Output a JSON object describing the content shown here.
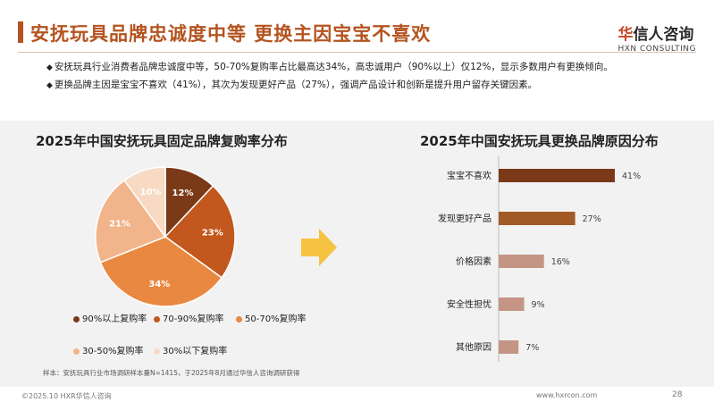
{
  "header": {
    "title": "安抚玩具品牌忠诚度中等 更换主因宝宝不喜欢",
    "logo_cn_prefix": "华",
    "logo_cn_rest": "信人咨询",
    "logo_en": "HXN CONSULTING"
  },
  "bullets": [
    "安抚玩具行业消费者品牌忠诚度中等，50-70%复购率占比最高达34%，高忠诚用户（90%以上）仅12%，显示多数用户有更换倾向。",
    "更换品牌主因是宝宝不喜欢（41%），其次为发现更好产品（27%），强调产品设计和创新是提升用户留存关键因素。"
  ],
  "colors": {
    "accent": "#b4531f",
    "pie": [
      "#7a3a17",
      "#c2581d",
      "#e98840",
      "#f2b48a",
      "#f8d9c3"
    ],
    "bar": [
      "#7a3a17",
      "#a25a26",
      "#c49585",
      "#c49585",
      "#c49585"
    ]
  },
  "chart_data": [
    {
      "type": "pie",
      "title": "2025年中国安抚玩具固定品牌复购率分布",
      "series": [
        {
          "name": "90%以上复购率",
          "value": 12,
          "label": "12%"
        },
        {
          "name": "70-90%复购率",
          "value": 23,
          "label": "23%"
        },
        {
          "name": "50-70%复购率",
          "value": 34,
          "label": "34%"
        },
        {
          "name": "30-50%复购率",
          "value": 21,
          "label": "21%"
        },
        {
          "name": "30%以下复购率",
          "value": 10,
          "label": "10%"
        }
      ],
      "legend": "bottom"
    },
    {
      "type": "bar",
      "orientation": "horizontal",
      "title": "2025年中国安抚玩具更换品牌原因分布",
      "categories": [
        "宝宝不喜欢",
        "发现更好产品",
        "价格因素",
        "安全性担忧",
        "其他原因"
      ],
      "values": [
        41,
        27,
        16,
        9,
        7
      ],
      "value_labels": [
        "41%",
        "27%",
        "16%",
        "9%",
        "7%"
      ],
      "unit": "%"
    }
  ],
  "note": "样本：安抚玩具行业市场调研样本量N=1415，于2025年8月通过华信人咨询调研获得",
  "footer": {
    "copyright": "©2025.10 HXR华信人咨询",
    "url": "www.hxrcon.com",
    "page": "28"
  }
}
